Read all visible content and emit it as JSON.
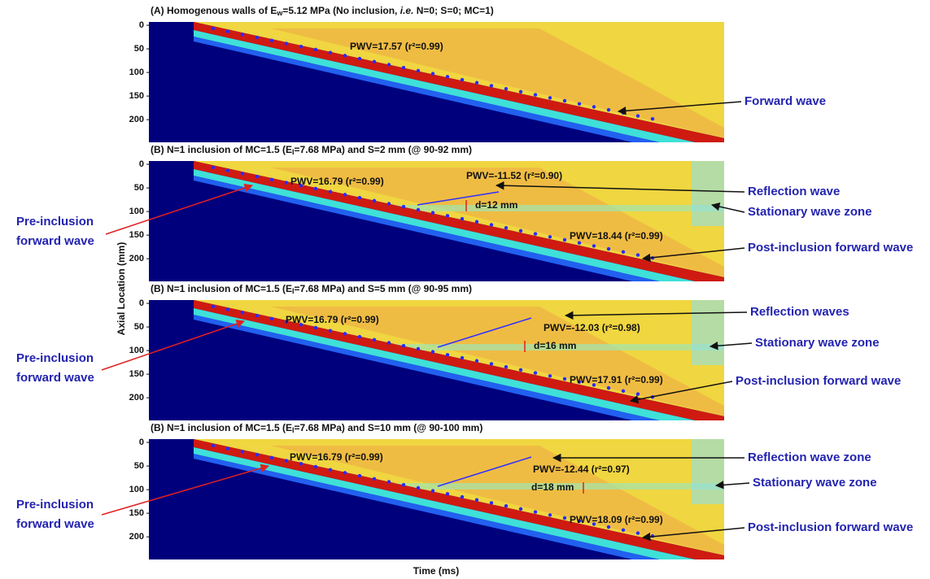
{
  "x_axis_label": "Time (ms)",
  "y_axis_label": "Axial Location (mm)",
  "ylim": [
    -7,
    248
  ],
  "yticks": [
    0,
    50,
    100,
    150,
    200
  ],
  "panels": [
    {
      "title": [
        "(A) Homogenous walls of E",
        "w",
        "=5.12 MPa (No inclusion, ",
        "i.e.",
        " N=0; S=0; MC=1)"
      ],
      "annotations": [
        "PWV=17.57 (r²=0.99)"
      ],
      "labels": [
        "Forward wave"
      ]
    },
    {
      "title": [
        "(B) N=1 inclusion of MC=1.5 (E",
        "I",
        "=7.68 MPa) and S=2 mm (@ 90-92 mm)"
      ],
      "annotations": [
        "PWV=16.79 (r²=0.99)",
        "PWV=-11.52 (r²=0.90)",
        "d=12 mm",
        "PWV=18.44 (r²=0.99)"
      ],
      "labels": [
        "Reflection wave",
        "Stationary wave zone",
        "Post-inclusion forward wave"
      ],
      "left_label": [
        "Pre-inclusion",
        "forward wave"
      ]
    },
    {
      "title": [
        "(B) N=1 inclusion of MC=1.5 (E",
        "I",
        "=7.68 MPa) and S=5 mm (@ 90-95 mm)"
      ],
      "annotations": [
        "PWV=16.79 (r²=0.99)",
        "PWV=-12.03 (r²=0.98)",
        "d=16 mm",
        "PWV=17.91 (r²=0.99)"
      ],
      "labels": [
        "Reflection waves",
        "Stationary wave zone",
        "Post-inclusion forward wave"
      ],
      "left_label": [
        "Pre-inclusion",
        "forward wave"
      ]
    },
    {
      "title": [
        "(B) N=1 inclusion of MC=1.5 (E",
        "I",
        "=7.68 MPa) and S=10 mm (@ 90-100 mm)"
      ],
      "annotations": [
        "PWV=16.79 (r²=0.99)",
        "PWV=-12.44 (r²=0.97)",
        "d=18 mm",
        "PWV=18.09 (r²=0.99)"
      ],
      "labels": [
        "Reflection wave zone",
        "Stationary wave zone",
        "Post-inclusion forward wave"
      ],
      "left_label": [
        "Pre-inclusion",
        "forward wave"
      ]
    }
  ]
}
